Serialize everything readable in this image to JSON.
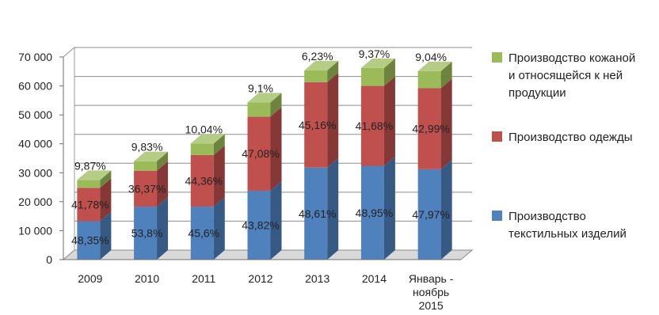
{
  "chart_data": {
    "type": "bar",
    "stacked": true,
    "three_d": true,
    "categories": [
      "2009",
      "2010",
      "2011",
      "2012",
      "2013",
      "2014",
      "Январь - ноябрь 2015"
    ],
    "category_lines": [
      [
        "2009"
      ],
      [
        "2010"
      ],
      [
        "2011"
      ],
      [
        "2012"
      ],
      [
        "2013"
      ],
      [
        "2014"
      ],
      [
        "Январь -",
        "ноябрь",
        "2015"
      ]
    ],
    "series": [
      {
        "name": "Производство текстильных изделий",
        "legend_lines": [
          "Производство",
          "текстильных изделий"
        ],
        "color": "#4f81bd",
        "values": [
          13300,
          18300,
          18300,
          23800,
          31800,
          32400,
          31200
        ],
        "labels": [
          "48,35%",
          "53,8%",
          "45,6%",
          "43,82%",
          "48,61%",
          "48,95%",
          "47,97%"
        ]
      },
      {
        "name": "Производство одежды",
        "legend_lines": [
          "Производство одежды"
        ],
        "color": "#c0504d",
        "values": [
          11500,
          12400,
          17800,
          25600,
          29500,
          27600,
          28000
        ],
        "labels": [
          "41,78%",
          "36,37%",
          "44,36%",
          "47,08%",
          "45,16%",
          "41,68%",
          "42,99%"
        ]
      },
      {
        "name": "Производство кожаной и относящейся к ней продукции",
        "legend_lines": [
          "Производство кожаной",
          "и относящейся к ней",
          "продукции"
        ],
        "color": "#9bbb59",
        "values": [
          2700,
          3300,
          4000,
          4900,
          4100,
          6200,
          5900
        ],
        "labels": [
          "9,87%",
          "9,83%",
          "10,04%",
          "9,1%",
          "6,23%",
          "9,37%",
          "9,04%"
        ]
      }
    ],
    "ylim": [
      0,
      70000
    ],
    "yticks": [
      0,
      10000,
      20000,
      30000,
      40000,
      50000,
      60000,
      70000
    ],
    "ytick_labels": [
      "0",
      "10 000",
      "20 000",
      "30 000",
      "40 000",
      "50 000",
      "60 000",
      "70 000"
    ],
    "grid": true,
    "legend_position": "right",
    "title": "",
    "xlabel": "",
    "ylabel": ""
  }
}
